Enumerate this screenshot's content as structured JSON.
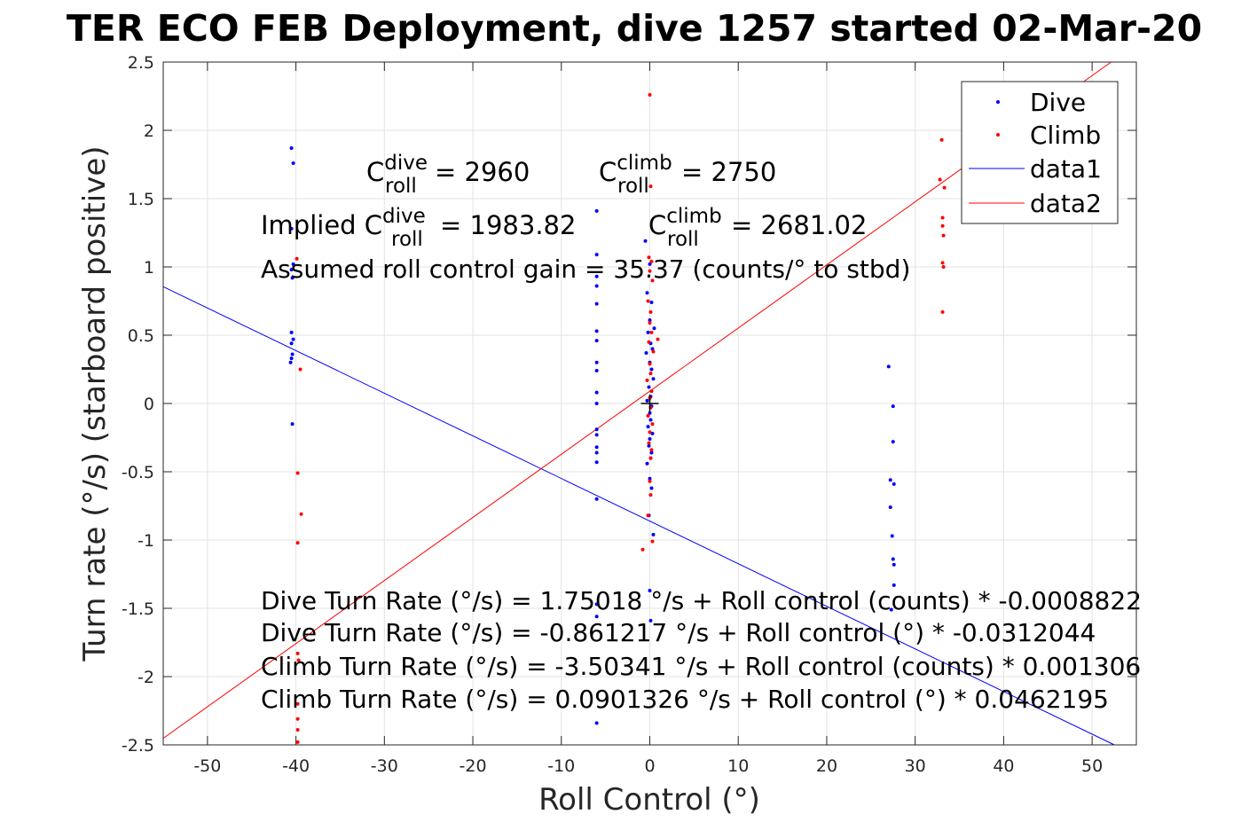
{
  "chart_data": {
    "type": "scatter",
    "title": "TER ECO FEB Deployment, dive 1257 started 02-Mar-20",
    "xlabel": "Roll Control (°)",
    "ylabel": "Turn rate (°/s) (starboard positive)",
    "xlim": [
      -55,
      55
    ],
    "ylim": [
      -2.5,
      2.5
    ],
    "xticks": [
      -50,
      -40,
      -30,
      -20,
      -10,
      0,
      10,
      20,
      30,
      40,
      50
    ],
    "yticks": [
      -2.5,
      -2,
      -1.5,
      -1,
      -0.5,
      0,
      0.5,
      1,
      1.5,
      2,
      2.5
    ],
    "xtick_labels": [
      "-50",
      "-40",
      "-30",
      "-20",
      "-10",
      "0",
      "10",
      "20",
      "30",
      "40",
      "50"
    ],
    "ytick_labels": [
      "-2.5",
      "-2",
      "-1.5",
      "-1",
      "-0.5",
      "0",
      "0.5",
      "1",
      "1.5",
      "2",
      "2.5"
    ],
    "grid": true,
    "legend_position": "top-right",
    "series": [
      {
        "name": "Dive",
        "kind": "points",
        "color": "#0000ff",
        "x": [
          -40.5,
          -40.3,
          -40.5,
          -40.3,
          -40.5,
          -40.4,
          -40.5,
          -40.3,
          -40.5,
          -40.4,
          -40.5,
          -40.6,
          -40.4,
          -6,
          -6,
          -6,
          -6,
          -6,
          -6,
          -6,
          -6,
          -6,
          -6,
          -6,
          -6,
          -6,
          -6,
          -6,
          -6,
          -6,
          -6,
          -6,
          -6,
          -0.5,
          0,
          -0.3,
          0.2,
          0,
          0.5,
          -0.2,
          0.1,
          0.3,
          -0.4,
          0,
          0.2,
          0.4,
          -0.1,
          0.1,
          -0.3,
          0.2,
          0,
          0.1,
          -0.2,
          0.3,
          0,
          -0.1,
          0.2,
          0.1,
          -0.3,
          0,
          0.2,
          -0.1,
          0.4,
          0,
          0.1,
          27,
          27.5,
          27.5,
          27.2,
          27.6,
          27.2,
          27.4,
          27.5,
          27.6,
          27.6,
          27.3
        ],
        "y": [
          1.87,
          1.76,
          1.28,
          1.02,
          0.98,
          0.92,
          0.52,
          0.47,
          0.44,
          0.36,
          0.33,
          0.3,
          -0.15,
          1.41,
          1.09,
          0.93,
          0.86,
          0.73,
          0.53,
          0.46,
          0.3,
          0.24,
          0.08,
          0.0,
          -0.19,
          -0.23,
          -0.32,
          -0.36,
          -0.43,
          -0.7,
          -1.47,
          -1.56,
          -2.34,
          1.19,
          1.02,
          0.81,
          0.74,
          0.61,
          0.55,
          0.52,
          0.44,
          0.4,
          0.37,
          0.3,
          0.25,
          0.18,
          0.12,
          0.05,
          0.02,
          -0.02,
          -0.07,
          -0.12,
          -0.17,
          -0.22,
          -0.26,
          -0.31,
          -0.36,
          -0.4,
          -0.44,
          -0.55,
          -0.62,
          -0.82,
          -0.96,
          -1.37,
          -1.59,
          0.27,
          -0.02,
          -0.28,
          -0.56,
          -0.59,
          -0.76,
          -0.97,
          -1.14,
          -1.18,
          -1.33,
          -1.51
        ]
      },
      {
        "name": "Climb",
        "kind": "points",
        "color": "#ff0000",
        "x": [
          -39.9,
          -39.5,
          -39.8,
          -39.4,
          -39.8,
          -39.8,
          -39.7,
          -39.8,
          -39.8,
          -39.8,
          -39.8,
          33,
          32.8,
          33.3,
          33.1,
          33.1,
          33.2,
          33.1,
          33.2,
          33.1,
          0,
          0.1,
          -0.1,
          0.2,
          0,
          0.3,
          -0.2,
          0.1,
          0,
          0.2,
          -0.1,
          0.4,
          0,
          0.1,
          -0.3,
          0.2,
          0,
          0.1,
          -0.2,
          0.3,
          0,
          -0.1,
          0.2,
          0.1,
          0.9,
          -0.8,
          0,
          0.1,
          -0.2,
          0.3
        ],
        "y": [
          1.06,
          0.25,
          -0.51,
          -0.81,
          -1.02,
          -1.83,
          -1.88,
          -2.2,
          -2.31,
          -2.39,
          -2.48,
          1.93,
          1.64,
          1.58,
          1.36,
          1.3,
          1.23,
          1.03,
          1.0,
          0.67,
          2.26,
          1.59,
          1.07,
          1.04,
          0.97,
          0.9,
          0.75,
          0.67,
          0.59,
          0.52,
          0.45,
          0.38,
          0.29,
          0.22,
          0.17,
          0.09,
          0.04,
          -0.03,
          -0.09,
          -0.15,
          -0.21,
          -0.29,
          -0.34,
          -0.4,
          0.47,
          -1.07,
          -0.57,
          -0.67,
          -0.82,
          -1.01
        ]
      },
      {
        "name": "data1",
        "kind": "line",
        "color": "#0000ff",
        "intercept": -0.861217,
        "slope": -0.0312044
      },
      {
        "name": "data2",
        "kind": "line",
        "color": "#ff0000",
        "intercept": 0.0901326,
        "slope": 0.0462195
      }
    ],
    "annotations": {
      "c_dive_line": {
        "base": "C",
        "sup": "dive",
        "sub": "roll",
        "rest": " = 2960"
      },
      "c_climb_line": {
        "base": "C",
        "sup": "climb",
        "sub": "roll",
        "rest": " = 2750"
      },
      "implied_dive_line": {
        "base": "Implied C",
        "sup": "dive",
        "sub": "roll",
        "rest": " = 1983.82"
      },
      "implied_climb_line": {
        "base": "C",
        "sup": "climb",
        "sub": "roll",
        "rest": " = 2681.02"
      },
      "gain": "Assumed roll control gain = 35.37 (counts/° to stbd)",
      "equations": [
        "Dive Turn Rate (°/s) = 1.75018 °/s + Roll control (counts) * -0.0008822",
        "Dive Turn Rate (°/s) = -0.861217 °/s + Roll control (°) * -0.0312044",
        "Climb Turn Rate (°/s) = -3.50341 °/s + Roll control (counts) * 0.001306",
        "Climb Turn Rate (°/s) = 0.0901326 °/s + Roll control (°) * 0.0462195"
      ]
    },
    "center_marker": {
      "x": 0,
      "y": 0,
      "color": "#000000"
    }
  }
}
